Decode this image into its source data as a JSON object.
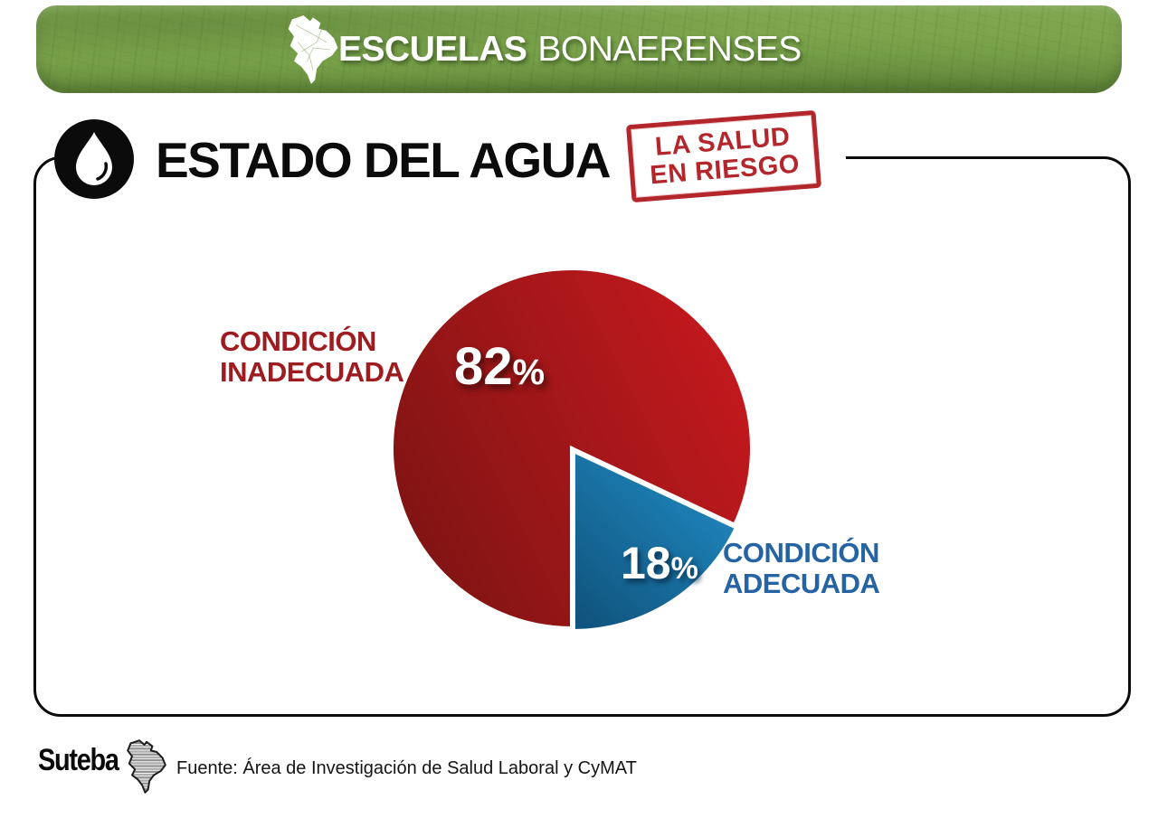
{
  "header": {
    "title_bold": "ESCUELAS",
    "title_regular": "BONAERENSES"
  },
  "section": {
    "title": "ESTADO DEL AGUA"
  },
  "stamp": {
    "line1": "LA SALUD",
    "line2": "EN RIESGO"
  },
  "chart_data": {
    "type": "pie",
    "title": "ESTADO DEL AGUA",
    "start_angle_deg": 180,
    "legend_position": "beside-slices",
    "slices": [
      {
        "label": "CONDICIÓN INADECUADA",
        "label_line1": "CONDICIÓN",
        "label_line2": "INADECUADA",
        "value": 82,
        "unit": "%",
        "color_start": "#c5191e",
        "color_end": "#7e1413",
        "label_color": "#9e1b20"
      },
      {
        "label": "CONDICIÓN ADECUADA",
        "label_line1": "CONDICIÓN",
        "label_line2": "ADECUADA",
        "value": 18,
        "unit": "%",
        "color_start": "#1f86bd",
        "color_end": "#10557f",
        "label_color": "#2563a3"
      }
    ]
  },
  "footer": {
    "logo_text": "Suteba",
    "source": "Fuente: Área de Investigación de Salud Laboral y CyMAT"
  },
  "colors": {
    "header_green": "#7aa44b",
    "stamp_red": "#b3262b",
    "card_border": "#0b0b0b",
    "slice_stroke": "#ffffff"
  }
}
